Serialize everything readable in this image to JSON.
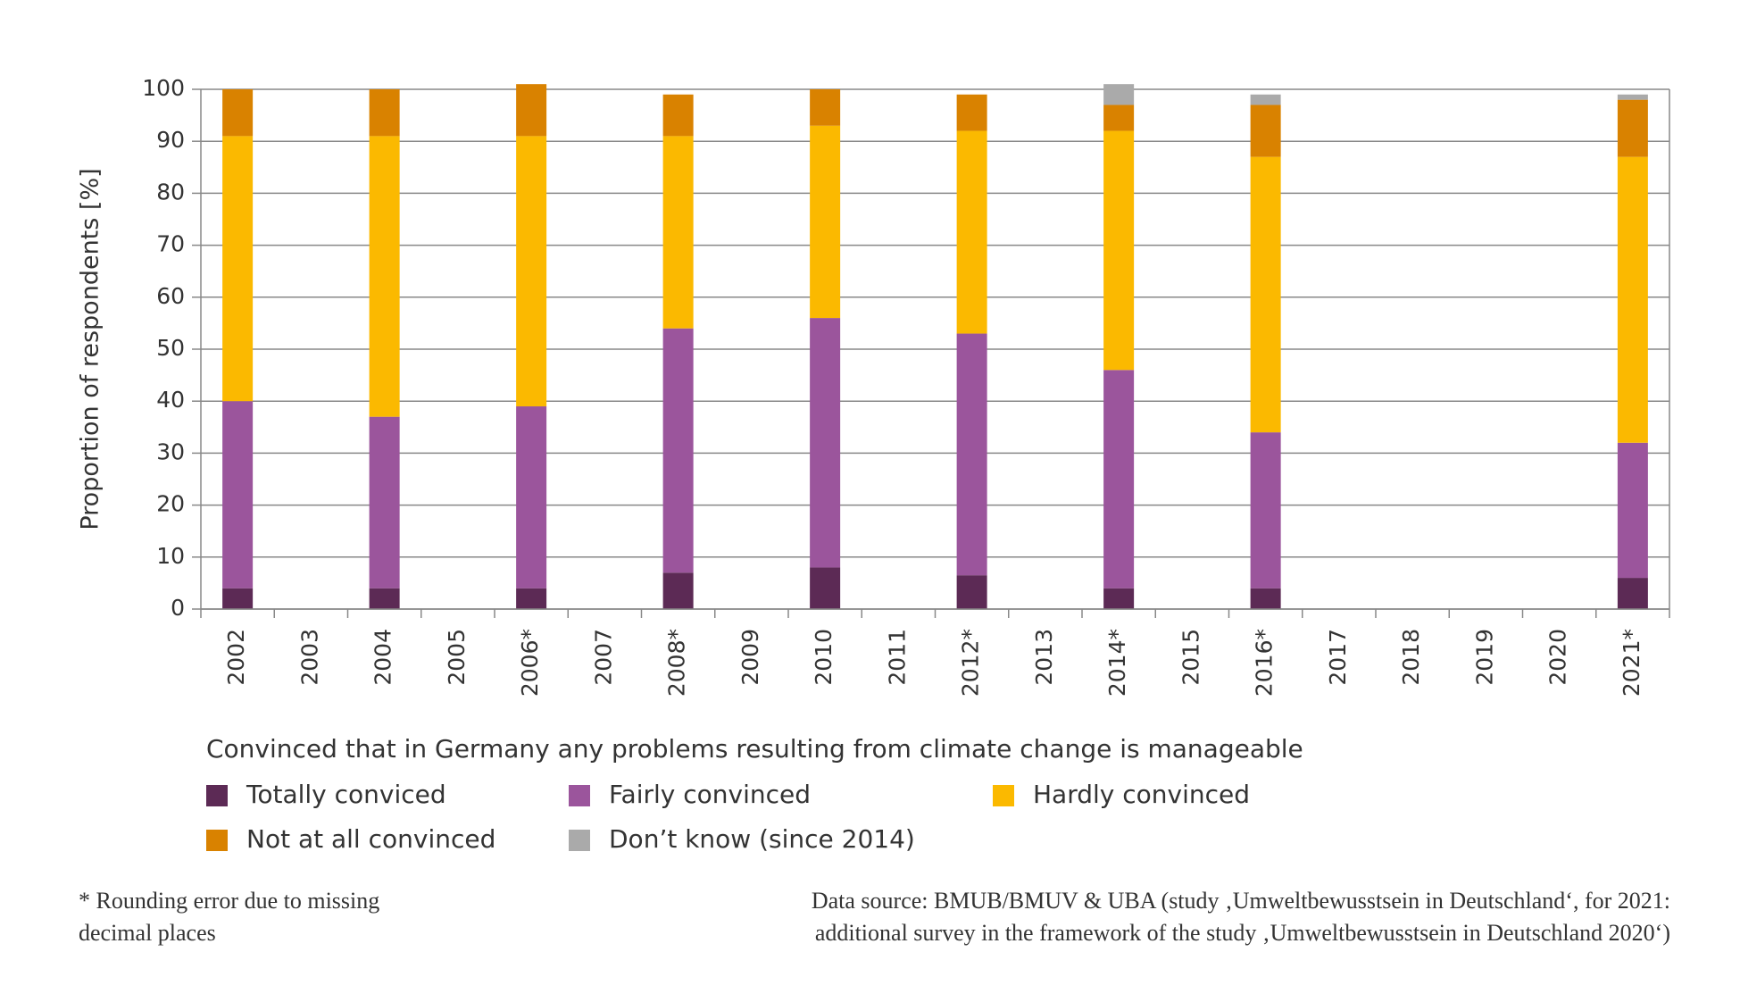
{
  "chart_data": {
    "type": "stacked-bar",
    "y_label": "Proportion of respondents [%]",
    "categories": [
      "2002",
      "2003",
      "2004",
      "2005",
      "2006*",
      "2007",
      "2008*",
      "2009",
      "2010",
      "2011",
      "2012*",
      "2013",
      "2014*",
      "2015",
      "2016*",
      "2017",
      "2018",
      "2019",
      "2020",
      "2021*"
    ],
    "series": [
      {
        "name": "Totally conviced",
        "color": "#5c2a55",
        "values": [
          4,
          null,
          4,
          null,
          4,
          null,
          7,
          null,
          8,
          null,
          6.5,
          null,
          4,
          null,
          4,
          null,
          null,
          null,
          null,
          6
        ]
      },
      {
        "name": "Fairly convinced",
        "color": "#9b559c",
        "values": [
          36,
          null,
          33,
          null,
          35,
          null,
          47,
          null,
          48,
          null,
          46.5,
          null,
          42,
          null,
          30,
          null,
          null,
          null,
          null,
          26
        ]
      },
      {
        "name": "Hardly convinced",
        "color": "#fbb900",
        "values": [
          51,
          null,
          54,
          null,
          52,
          null,
          37,
          null,
          37,
          null,
          39,
          null,
          46,
          null,
          53,
          null,
          null,
          null,
          null,
          55
        ]
      },
      {
        "name": "Not at all convinced",
        "color": "#d98200",
        "values": [
          9,
          null,
          9,
          null,
          10,
          null,
          8,
          null,
          7,
          null,
          7,
          null,
          5,
          null,
          10,
          null,
          null,
          null,
          null,
          11
        ]
      },
      {
        "name": "Don’t know (since 2014)",
        "color": "#aaaaaa",
        "values": [
          null,
          null,
          null,
          null,
          null,
          null,
          null,
          null,
          null,
          null,
          null,
          null,
          4,
          null,
          2,
          null,
          null,
          null,
          null,
          1
        ]
      }
    ],
    "ylim": [
      0,
      100
    ],
    "yticks": [
      0,
      10,
      20,
      30,
      40,
      50,
      60,
      70,
      80,
      90,
      100
    ],
    "grid": true,
    "legend_title": "Convinced that in Germany any problems resulting from climate change is manageable",
    "footnote": [
      "* Rounding error due to missing",
      "decimal places"
    ],
    "source": [
      "Data source: BMUB/BMUV & UBA (study ‚Umweltbewusstsein in Deutschland‘, for 2021:",
      "additional survey in the framework of the study ‚Umweltbewusstsein in Deutschland 2020‘)"
    ]
  }
}
